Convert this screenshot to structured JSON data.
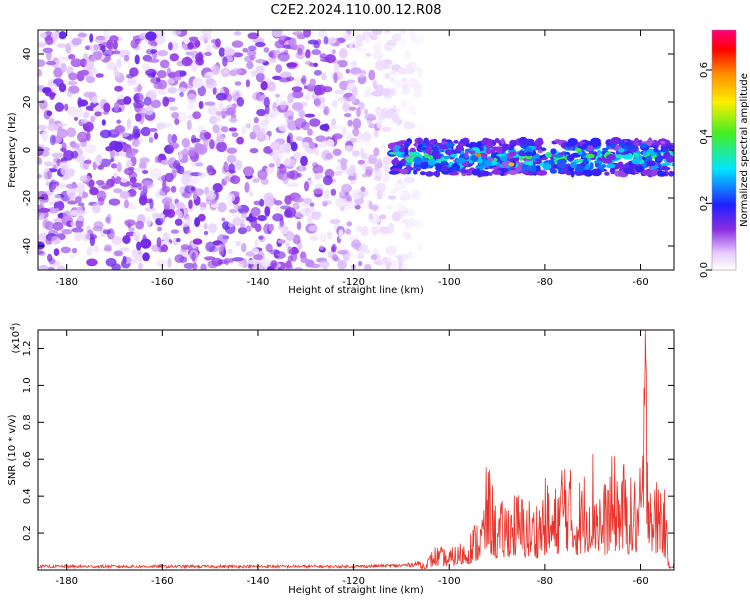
{
  "title": "C2E2.2024.110.00.12.R08",
  "colors": {
    "signal_line": "#e8322a",
    "spectrogram_base": "#7a1cf0",
    "axis": "#000000"
  },
  "chart_data": [
    {
      "type": "heatmap",
      "xlabel": "Height of straight line (km)",
      "ylabel": "Frequency (Hz)",
      "xlim": [
        -186,
        -53
      ],
      "ylim": [
        -50,
        50
      ],
      "x_ticks": [
        "-180",
        "-160",
        "-140",
        "-120",
        "-100",
        "-80",
        "-60"
      ],
      "y_ticks": [
        "-40",
        "-20",
        "0",
        "20",
        "40"
      ],
      "colorbar": {
        "label": "Normalized spectral amplitude",
        "range": [
          0,
          0.72
        ],
        "ticks": [
          "0.0",
          "0.2",
          "0.4",
          "0.6"
        ],
        "colormap": "rainbow (white-violet-blue-cyan-green-yellow-red-magenta)"
      },
      "features": {
        "noise_region_x": [
          -186,
          -112
        ],
        "signal_band_x": [
          -112,
          -53
        ],
        "signal_band_center_hz": -3,
        "signal_band_halfwidth_hz": 7,
        "noise_amplitude_approx": 0.08,
        "signal_peak_amplitude_approx": 0.6
      }
    },
    {
      "type": "line",
      "xlabel": "Height of straight line (km)",
      "ylabel": "SNR (10 * v/v)",
      "y_scale_label": "(x10",
      "y_scale_exp": "4",
      "xlim": [
        -186,
        -53
      ],
      "ylim": [
        0,
        1.3
      ],
      "x_ticks": [
        "-180",
        "-160",
        "-140",
        "-120",
        "-100",
        "-80",
        "-60"
      ],
      "y_ticks": [
        "0.2",
        "0.4",
        "0.6",
        "0.8",
        "1.0",
        "1.2"
      ],
      "series": [
        {
          "x": [
            -186,
            -160,
            -140,
            -120,
            -110,
            -105,
            -103,
            -100,
            -97,
            -95,
            -93,
            -92,
            -90,
            -87,
            -85,
            -82,
            -80,
            -78,
            -76,
            -74,
            -72,
            -70,
            -68,
            -66,
            -64,
            -62,
            -60,
            -59,
            -58,
            -57,
            -56,
            -55,
            -54
          ],
          "values": [
            0.02,
            0.02,
            0.02,
            0.02,
            0.025,
            0.04,
            0.12,
            0.1,
            0.15,
            0.22,
            0.32,
            0.56,
            0.3,
            0.4,
            0.38,
            0.34,
            0.45,
            0.38,
            0.65,
            0.42,
            0.48,
            0.62,
            0.4,
            0.55,
            0.56,
            0.45,
            0.5,
            1.3,
            0.66,
            0.42,
            0.53,
            0.4,
            0.05
          ]
        }
      ]
    }
  ]
}
